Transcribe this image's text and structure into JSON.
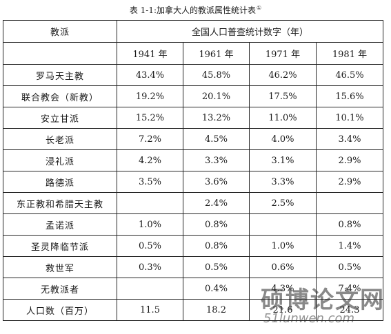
{
  "caption": {
    "text": "表 1-1:加拿大人的教派属性统计表",
    "footnote_mark": "①"
  },
  "table": {
    "header_denomination": "教派",
    "header_census": "全国人口普查统计数字（年）",
    "years": [
      "1941 年",
      "1961 年",
      "1971 年",
      "1981 年"
    ],
    "rows": [
      {
        "name": "罗马天主教",
        "values": [
          "43.4%",
          "45.8%",
          "46.2%",
          "46.5%"
        ]
      },
      {
        "name": "联合教会（新教）",
        "values": [
          "19.2%",
          "20.1%",
          "17.5%",
          "15.6%"
        ]
      },
      {
        "name": "安立甘派",
        "values": [
          "15.2%",
          "13.2%",
          "11.0%",
          "10.1%"
        ]
      },
      {
        "name": "长老派",
        "values": [
          "7.2%",
          "4.5%",
          "4.0%",
          "3.4%"
        ]
      },
      {
        "name": "浸礼派",
        "values": [
          "4.2%",
          "3.3%",
          "3.1%",
          "2.9%"
        ]
      },
      {
        "name": "路德派",
        "values": [
          "3.5%",
          "3.6%",
          "3.3%",
          "2.9%"
        ]
      },
      {
        "name": "东正教和希腊天主教",
        "values": [
          "",
          "2.4%",
          "2.5%",
          ""
        ]
      },
      {
        "name": "孟诺派",
        "values": [
          "1.0%",
          "0.8%",
          "",
          "0.8%"
        ]
      },
      {
        "name": "圣灵降临节派",
        "values": [
          "0.5%",
          "0.8%",
          "1.0%",
          "1.4%"
        ]
      },
      {
        "name": "救世军",
        "values": [
          "0.3%",
          "0.5%",
          "0.6%",
          "0.5%"
        ]
      },
      {
        "name": "无教派者",
        "values": [
          "",
          "0.4%",
          "4.3%",
          "7.4%"
        ]
      },
      {
        "name": "人口数（百万）",
        "values": [
          "11.5",
          "18.2",
          "21.6",
          "24.3"
        ]
      }
    ]
  },
  "watermark": {
    "text_cn": "硕博论文网",
    "text_url": "51lunwen.com"
  }
}
